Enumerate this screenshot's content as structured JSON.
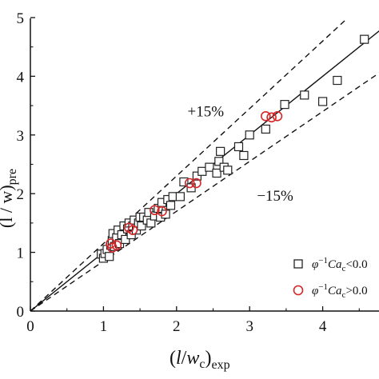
{
  "chart_data": {
    "type": "scatter",
    "xlabel": {
      "main": "(l/w",
      "sub_c": "c",
      "close": ")",
      "sub": "exp"
    },
    "ylabel": {
      "visible_text": "(l / w)",
      "sub": "pre"
    },
    "xlim": [
      0,
      5
    ],
    "ylim": [
      0,
      5
    ],
    "x_ticks": [
      "0",
      "1",
      "2",
      "3",
      "4"
    ],
    "y_ticks": [
      "0",
      "1",
      "2",
      "3",
      "4",
      "5"
    ],
    "annotations": [
      {
        "text": "+15%",
        "x": 2.15,
        "y": 3.32
      },
      {
        "text": "−15%",
        "x": 3.1,
        "y": 1.88
      }
    ],
    "reference_lines": [
      {
        "label": "y = x",
        "style": "solid",
        "slope": 1.0
      },
      {
        "label": "+15%",
        "style": "dashed",
        "slope": 1.15
      },
      {
        "label": "-15%",
        "style": "dashed",
        "slope": 0.85
      }
    ],
    "series": [
      {
        "name": "φ⁻¹Ca c < 0.0",
        "legend_text": "φ−1Cac<0.0",
        "marker": "square",
        "color": "#222222",
        "points": [
          [
            0.97,
            0.97
          ],
          [
            1.0,
            0.9
          ],
          [
            1.02,
            0.98
          ],
          [
            1.05,
            1.05
          ],
          [
            1.08,
            0.93
          ],
          [
            1.1,
            1.12
          ],
          [
            1.12,
            1.2
          ],
          [
            1.13,
            1.32
          ],
          [
            1.15,
            1.1
          ],
          [
            1.18,
            1.25
          ],
          [
            1.2,
            1.38
          ],
          [
            1.22,
            1.15
          ],
          [
            1.25,
            1.3
          ],
          [
            1.28,
            1.45
          ],
          [
            1.3,
            1.22
          ],
          [
            1.33,
            1.4
          ],
          [
            1.35,
            1.5
          ],
          [
            1.38,
            1.3
          ],
          [
            1.4,
            1.45
          ],
          [
            1.42,
            1.55
          ],
          [
            1.45,
            1.38
          ],
          [
            1.48,
            1.5
          ],
          [
            1.5,
            1.6
          ],
          [
            1.52,
            1.45
          ],
          [
            1.55,
            1.6
          ],
          [
            1.6,
            1.55
          ],
          [
            1.62,
            1.68
          ],
          [
            1.65,
            1.5
          ],
          [
            1.7,
            1.62
          ],
          [
            1.75,
            1.75
          ],
          [
            1.78,
            1.6
          ],
          [
            1.8,
            1.85
          ],
          [
            1.85,
            1.65
          ],
          [
            1.88,
            1.9
          ],
          [
            1.92,
            1.8
          ],
          [
            1.95,
            1.95
          ],
          [
            2.05,
            1.95
          ],
          [
            2.1,
            2.2
          ],
          [
            2.2,
            2.1
          ],
          [
            2.28,
            2.3
          ],
          [
            2.35,
            2.38
          ],
          [
            2.45,
            2.45
          ],
          [
            2.55,
            2.35
          ],
          [
            2.58,
            2.55
          ],
          [
            2.6,
            2.72
          ],
          [
            2.65,
            2.45
          ],
          [
            2.7,
            2.4
          ],
          [
            2.85,
            2.8
          ],
          [
            2.92,
            2.65
          ],
          [
            3.0,
            3.0
          ],
          [
            3.22,
            3.1
          ],
          [
            3.48,
            3.52
          ],
          [
            3.75,
            3.68
          ],
          [
            4.0,
            3.57
          ],
          [
            4.2,
            3.93
          ],
          [
            4.57,
            4.63
          ]
        ]
      },
      {
        "name": "φ⁻¹Ca c > 0.0",
        "legend_text": "φ−1Cac>0.0",
        "marker": "circle",
        "color": "#d62728",
        "points": [
          [
            1.1,
            1.15
          ],
          [
            1.12,
            1.08
          ],
          [
            1.18,
            1.12
          ],
          [
            1.35,
            1.42
          ],
          [
            1.4,
            1.38
          ],
          [
            1.7,
            1.72
          ],
          [
            1.8,
            1.7
          ],
          [
            2.18,
            2.18
          ],
          [
            2.27,
            2.18
          ],
          [
            3.22,
            3.32
          ],
          [
            3.3,
            3.3
          ],
          [
            3.38,
            3.32
          ]
        ]
      }
    ],
    "legend": {
      "placement": "bottom-right"
    }
  }
}
